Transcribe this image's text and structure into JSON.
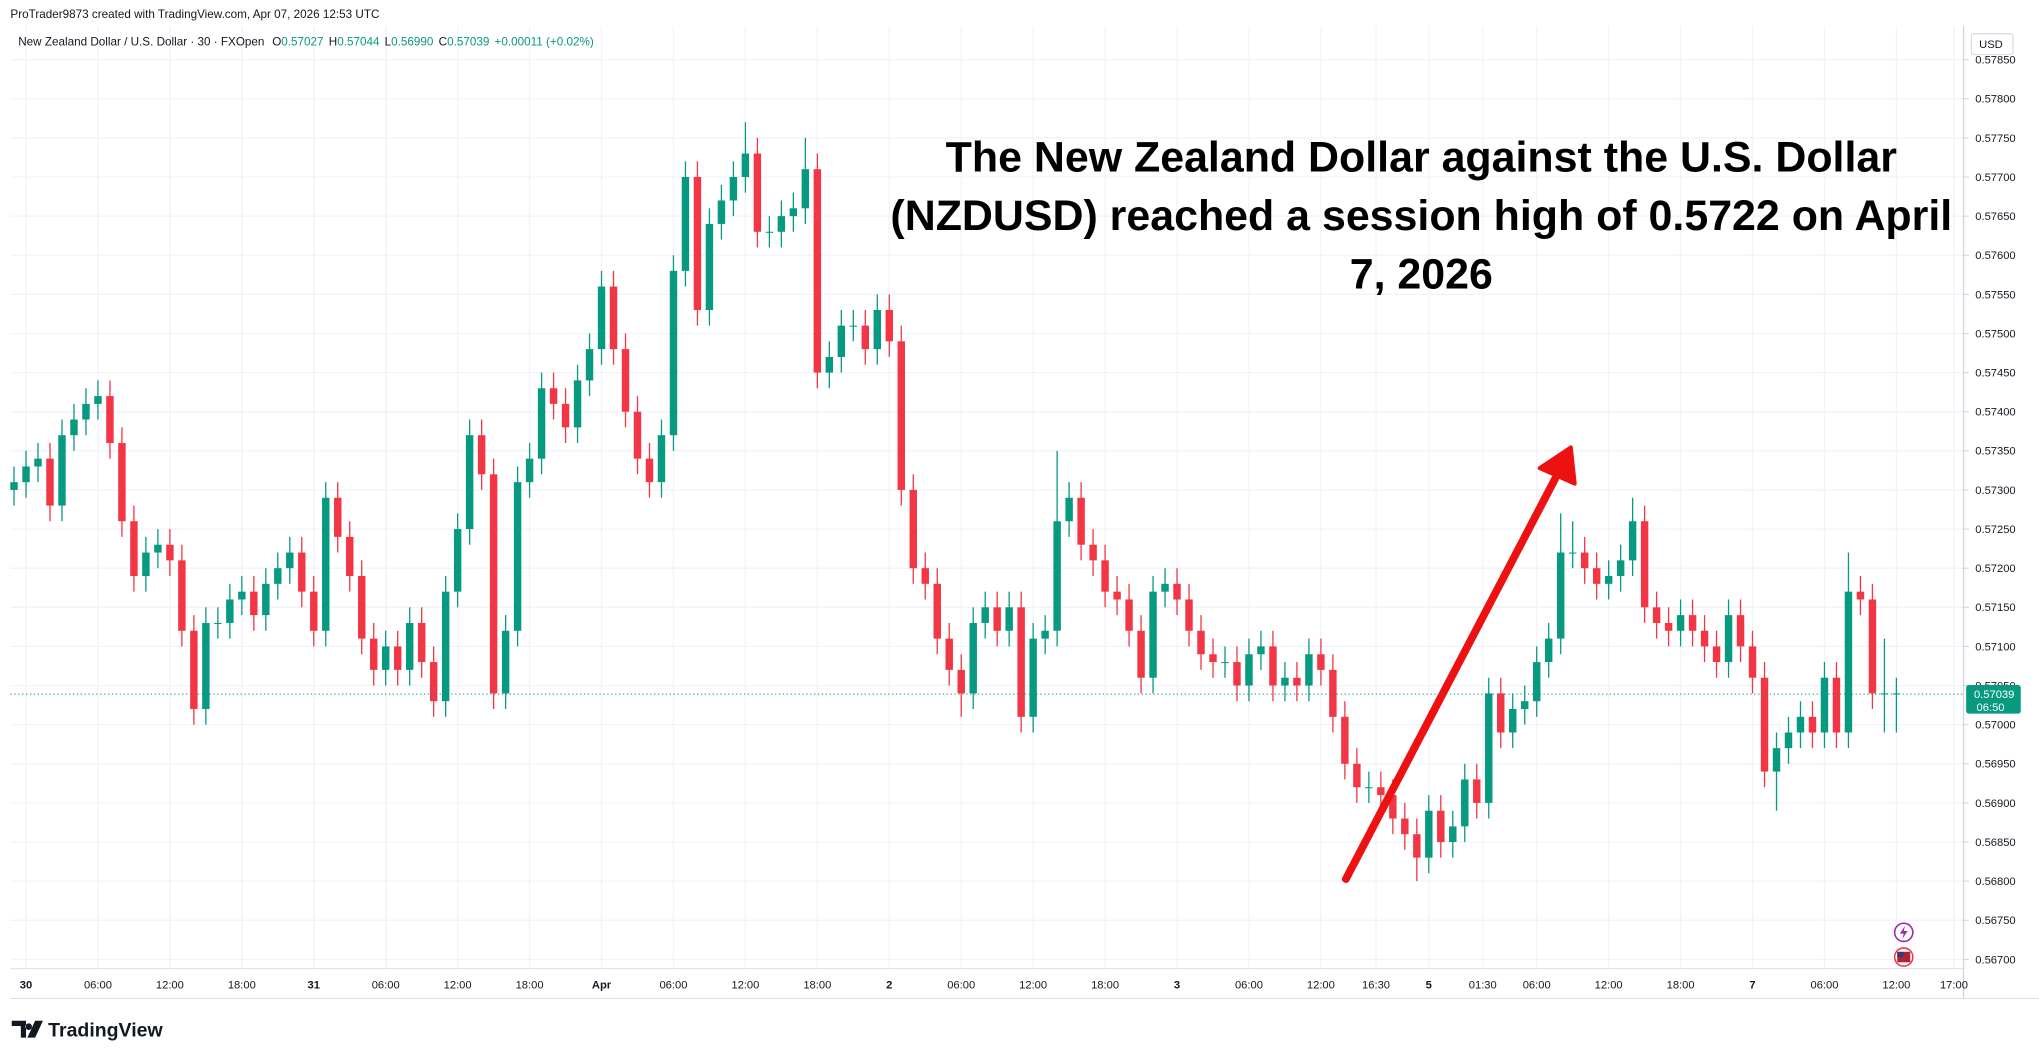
{
  "header": {
    "credit": "ProTrader9873 created with TradingView.com, Apr 07, 2026 12:53 UTC",
    "logo": "TradingView"
  },
  "chart_data": {
    "type": "candlestick",
    "title": "New Zealand Dollar / U.S. Dollar · 30 · FXOpen",
    "ohlc_legend": [
      {
        "label": "O",
        "value": "0.57027"
      },
      {
        "label": "H",
        "value": "0.57044"
      },
      {
        "label": "L",
        "value": "0.56990"
      },
      {
        "label": "C",
        "value": "0.57039"
      }
    ],
    "change": "+0.00011 (+0.02%)",
    "currency": "USD",
    "annotation": [
      "The New Zealand Dollar against the U.S. Dollar",
      "(NZDUSD) reached a session high of 0.5722 on April",
      "7, 2026"
    ],
    "up_color": "#089981",
    "down_color": "#f23645",
    "x": [
      -1,
      0,
      1,
      2,
      3,
      4,
      5,
      6,
      7,
      8,
      9,
      10,
      11,
      12,
      13,
      14,
      15,
      16,
      17,
      18,
      19,
      20,
      21,
      22,
      23,
      24,
      25,
      26,
      27,
      28,
      29,
      30,
      31,
      32,
      33,
      34,
      35,
      36,
      37,
      38,
      39,
      40,
      41,
      42,
      43,
      44,
      45,
      46,
      47,
      48,
      49,
      50,
      51,
      52,
      53,
      54,
      55,
      56,
      57,
      58,
      59,
      60,
      61,
      62,
      63,
      64,
      65,
      66,
      67,
      68,
      69,
      70,
      71,
      72,
      73,
      74,
      75,
      76,
      77,
      78,
      79,
      80,
      81,
      82,
      83,
      84,
      85,
      86,
      87,
      88,
      89,
      90,
      91,
      92,
      93,
      94,
      95,
      96,
      97,
      98,
      99,
      100,
      101,
      102,
      103,
      104,
      105,
      106,
      107,
      108,
      109,
      110,
      111,
      112,
      113,
      114,
      115,
      116,
      117,
      118,
      119,
      120,
      121,
      122,
      123,
      124,
      125,
      126,
      127,
      128,
      129,
      130,
      131,
      132,
      133,
      134,
      135,
      136,
      137,
      138,
      139,
      140,
      141,
      142,
      143,
      144,
      145,
      146,
      147,
      148,
      149,
      150,
      151,
      152,
      153,
      154,
      155,
      156
    ],
    "open": [
      0.573,
      0.5731,
      0.5733,
      0.5734,
      0.5728,
      0.5737,
      0.5739,
      0.5741,
      0.5742,
      0.5736,
      0.5726,
      0.5719,
      0.5722,
      0.5723,
      0.5721,
      0.5712,
      0.5702,
      0.5713,
      0.5713,
      0.5716,
      0.5717,
      0.5714,
      0.5718,
      0.572,
      0.5722,
      0.5717,
      0.5712,
      0.5729,
      0.5724,
      0.5719,
      0.5711,
      0.5707,
      0.571,
      0.5707,
      0.5713,
      0.5708,
      0.5703,
      0.5717,
      0.5725,
      0.5737,
      0.5732,
      0.5704,
      0.5712,
      0.5731,
      0.5734,
      0.5743,
      0.5741,
      0.5738,
      0.5744,
      0.5748,
      0.5756,
      0.5748,
      0.574,
      0.5734,
      0.5731,
      0.5737,
      0.5758,
      0.577,
      0.5753,
      0.5764,
      0.5767,
      0.577,
      0.5773,
      0.5763,
      0.5763,
      0.5765,
      0.5766,
      0.5771,
      0.5745,
      0.5747,
      0.5751,
      0.5751,
      0.5748,
      0.5753,
      0.5749,
      0.573,
      0.572,
      0.5718,
      0.5711,
      0.5707,
      0.5704,
      0.5713,
      0.5715,
      0.5712,
      0.5715,
      0.5701,
      0.5711,
      0.5712,
      0.5726,
      0.5729,
      0.5723,
      0.5721,
      0.5717,
      0.5716,
      0.5712,
      0.5706,
      0.5717,
      0.5718,
      0.5716,
      0.5712,
      0.5709,
      0.5708,
      0.5708,
      0.5705,
      0.5709,
      0.571,
      0.5705,
      0.5706,
      0.5705,
      0.5709,
      0.5707,
      0.5701,
      0.5695,
      0.5692,
      0.5692,
      0.5691,
      0.5688,
      0.5686,
      0.5683,
      0.5689,
      0.5685,
      0.5687,
      0.5693,
      0.569,
      0.5704,
      0.5699,
      0.5702,
      0.5703,
      0.5708,
      0.5711,
      0.5722,
      0.5722,
      0.572,
      0.5718,
      0.5719,
      0.5721,
      0.5726,
      0.5715,
      0.5713,
      0.5712,
      0.5714,
      0.5712,
      0.571,
      0.5708,
      0.5714,
      0.571,
      0.5706,
      0.5694,
      0.5697,
      0.5699,
      0.5701,
      0.5699,
      0.5706,
      0.5699,
      0.5717,
      0.5716,
      0.5704,
      0.5704
    ],
    "high": [
      0.5733,
      0.5735,
      0.5736,
      0.5736,
      0.5739,
      0.5741,
      0.5743,
      0.5744,
      0.5744,
      0.5738,
      0.5728,
      0.5724,
      0.5725,
      0.5725,
      0.5723,
      0.5714,
      0.5715,
      0.5715,
      0.5718,
      0.5719,
      0.5719,
      0.572,
      0.5722,
      0.5724,
      0.5724,
      0.5719,
      0.5731,
      0.5731,
      0.5726,
      0.5721,
      0.5713,
      0.5712,
      0.5712,
      0.5715,
      0.5715,
      0.571,
      0.5719,
      0.5727,
      0.5739,
      0.5739,
      0.5734,
      0.5714,
      0.5733,
      0.5736,
      0.5745,
      0.5745,
      0.5743,
      0.5746,
      0.575,
      0.5758,
      0.5758,
      0.575,
      0.5742,
      0.5736,
      0.5739,
      0.576,
      0.5772,
      0.5772,
      0.5766,
      0.5769,
      0.5772,
      0.5777,
      0.5775,
      0.5765,
      0.5767,
      0.5768,
      0.5775,
      0.5773,
      0.5749,
      0.5753,
      0.5753,
      0.5753,
      0.5755,
      0.5755,
      0.5751,
      0.5732,
      0.5722,
      0.572,
      0.5713,
      0.5709,
      0.5715,
      0.5717,
      0.5717,
      0.5717,
      0.5717,
      0.5713,
      0.5714,
      0.5735,
      0.5731,
      0.5731,
      0.5725,
      0.5723,
      0.5719,
      0.5718,
      0.5714,
      0.5719,
      0.572,
      0.572,
      0.5718,
      0.5714,
      0.5711,
      0.571,
      0.571,
      0.5711,
      0.5712,
      0.5712,
      0.5708,
      0.5708,
      0.5711,
      0.5711,
      0.5709,
      0.5703,
      0.5697,
      0.5694,
      0.5694,
      0.5693,
      0.569,
      0.5688,
      0.5691,
      0.5691,
      0.5689,
      0.5695,
      0.5695,
      0.5706,
      0.5706,
      0.5704,
      0.5705,
      0.571,
      0.5713,
      0.5727,
      0.5726,
      0.5724,
      0.5722,
      0.5721,
      0.5723,
      0.5729,
      0.5728,
      0.5717,
      0.5715,
      0.5716,
      0.5716,
      0.5714,
      0.5712,
      0.5716,
      0.5716,
      0.5712,
      0.5708,
      0.5699,
      0.5701,
      0.5703,
      0.5703,
      0.5708,
      0.5708,
      0.5722,
      0.5719,
      0.5718,
      0.5711,
      0.5706
    ],
    "low": [
      0.5728,
      0.5729,
      0.5731,
      0.5726,
      0.5726,
      0.5735,
      0.5737,
      0.5739,
      0.5734,
      0.5724,
      0.5717,
      0.5717,
      0.572,
      0.5719,
      0.571,
      0.57,
      0.57,
      0.5711,
      0.5711,
      0.5714,
      0.5712,
      0.5712,
      0.5716,
      0.5718,
      0.5715,
      0.571,
      0.571,
      0.5722,
      0.5717,
      0.5709,
      0.5705,
      0.5705,
      0.5705,
      0.5705,
      0.5706,
      0.5701,
      0.5701,
      0.5715,
      0.5723,
      0.573,
      0.5702,
      0.5702,
      0.571,
      0.5729,
      0.5732,
      0.5739,
      0.5736,
      0.5736,
      0.5742,
      0.5746,
      0.5746,
      0.5738,
      0.5732,
      0.5729,
      0.5729,
      0.5735,
      0.5756,
      0.5751,
      0.5751,
      0.5762,
      0.5765,
      0.5768,
      0.5761,
      0.5761,
      0.5761,
      0.5763,
      0.5764,
      0.5743,
      0.5743,
      0.5745,
      0.5749,
      0.5746,
      0.5746,
      0.5747,
      0.5728,
      0.5718,
      0.5716,
      0.5709,
      0.5705,
      0.5701,
      0.5702,
      0.5711,
      0.571,
      0.571,
      0.5699,
      0.5699,
      0.5709,
      0.571,
      0.5724,
      0.5721,
      0.5719,
      0.5715,
      0.5714,
      0.571,
      0.5704,
      0.5704,
      0.5715,
      0.5714,
      0.571,
      0.5707,
      0.5706,
      0.5706,
      0.5703,
      0.5703,
      0.5707,
      0.5703,
      0.5703,
      0.5703,
      0.5703,
      0.5705,
      0.5699,
      0.5693,
      0.569,
      0.569,
      0.5689,
      0.5686,
      0.5684,
      0.568,
      0.5681,
      0.5683,
      0.5683,
      0.5685,
      0.5688,
      0.5688,
      0.5697,
      0.5697,
      0.57,
      0.5701,
      0.5706,
      0.5709,
      0.572,
      0.5718,
      0.5716,
      0.5716,
      0.5717,
      0.5719,
      0.5713,
      0.5711,
      0.571,
      0.571,
      0.571,
      0.5708,
      0.5706,
      0.5706,
      0.5708,
      0.5704,
      0.5692,
      0.5689,
      0.5695,
      0.5697,
      0.5697,
      0.5697,
      0.5697,
      0.5697,
      0.5714,
      0.5702,
      0.5699,
      0.5699
    ],
    "close": [
      0.5731,
      0.5733,
      0.5734,
      0.5728,
      0.5737,
      0.5739,
      0.5741,
      0.5742,
      0.5736,
      0.5726,
      0.5719,
      0.5722,
      0.5723,
      0.5721,
      0.5712,
      0.5702,
      0.5713,
      0.5713,
      0.5716,
      0.5717,
      0.5714,
      0.5718,
      0.572,
      0.5722,
      0.5717,
      0.5712,
      0.5729,
      0.5724,
      0.5719,
      0.5711,
      0.5707,
      0.571,
      0.5707,
      0.5713,
      0.5708,
      0.5703,
      0.5717,
      0.5725,
      0.5737,
      0.5732,
      0.5704,
      0.5712,
      0.5731,
      0.5734,
      0.5743,
      0.5741,
      0.5738,
      0.5744,
      0.5748,
      0.5756,
      0.5748,
      0.574,
      0.5734,
      0.5731,
      0.5737,
      0.5758,
      0.577,
      0.5753,
      0.5764,
      0.5767,
      0.577,
      0.5773,
      0.5763,
      0.5763,
      0.5765,
      0.5766,
      0.5771,
      0.5745,
      0.5747,
      0.5751,
      0.5751,
      0.5748,
      0.5753,
      0.5749,
      0.573,
      0.572,
      0.5718,
      0.5711,
      0.5707,
      0.5704,
      0.5713,
      0.5715,
      0.5712,
      0.5715,
      0.5701,
      0.5711,
      0.5712,
      0.5726,
      0.5729,
      0.5723,
      0.5721,
      0.5717,
      0.5716,
      0.5712,
      0.5706,
      0.5717,
      0.5718,
      0.5716,
      0.5712,
      0.5709,
      0.5708,
      0.5708,
      0.5705,
      0.5709,
      0.571,
      0.5705,
      0.5706,
      0.5705,
      0.5709,
      0.5707,
      0.5701,
      0.5695,
      0.5692,
      0.5692,
      0.5691,
      0.5688,
      0.5686,
      0.5683,
      0.5689,
      0.5685,
      0.5687,
      0.5693,
      0.569,
      0.5704,
      0.5699,
      0.5702,
      0.5703,
      0.5708,
      0.5711,
      0.5722,
      0.5722,
      0.572,
      0.5718,
      0.5719,
      0.5721,
      0.5726,
      0.5715,
      0.5713,
      0.5712,
      0.5714,
      0.5712,
      0.571,
      0.5708,
      0.5714,
      0.571,
      0.5706,
      0.5694,
      0.5697,
      0.5699,
      0.5701,
      0.5699,
      0.5706,
      0.5699,
      0.5717,
      0.5716,
      0.5704,
      0.5704,
      0.5704
    ],
    "xlim": [
      -1.3,
      161.6
    ],
    "xticks": [
      {
        "value": 0,
        "label": "30"
      },
      {
        "value": 6,
        "label": "06:00"
      },
      {
        "value": 12,
        "label": "12:00"
      },
      {
        "value": 18,
        "label": "18:00"
      },
      {
        "value": 24,
        "label": "31"
      },
      {
        "value": 30,
        "label": "06:00"
      },
      {
        "value": 36,
        "label": "12:00"
      },
      {
        "value": 42,
        "label": "18:00"
      },
      {
        "value": 48,
        "label": "Apr"
      },
      {
        "value": 54,
        "label": "06:00"
      },
      {
        "value": 60,
        "label": "12:00"
      },
      {
        "value": 66,
        "label": "18:00"
      },
      {
        "value": 72,
        "label": "2"
      },
      {
        "value": 78,
        "label": "06:00"
      },
      {
        "value": 84,
        "label": "12:00"
      },
      {
        "value": 90,
        "label": "18:00"
      },
      {
        "value": 96,
        "label": "3"
      },
      {
        "value": 102,
        "label": "06:00"
      },
      {
        "value": 108,
        "label": "12:00"
      },
      {
        "value": 112.6,
        "label": "16:30"
      },
      {
        "value": 117,
        "label": "5"
      },
      {
        "value": 121.5,
        "label": "01:30"
      },
      {
        "value": 126,
        "label": "06:00"
      },
      {
        "value": 132,
        "label": "12:00"
      },
      {
        "value": 138,
        "label": "18:00"
      },
      {
        "value": 144,
        "label": "7"
      },
      {
        "value": 150,
        "label": "06:00"
      },
      {
        "value": 156,
        "label": "12:00"
      },
      {
        "value": 160.8,
        "label": "17:00"
      }
    ],
    "ylim": [
      0.56688,
      0.57893
    ],
    "yticks": [
      {
        "value": 0.567,
        "label": "0.56700"
      },
      {
        "value": 0.5675,
        "label": "0.56750"
      },
      {
        "value": 0.568,
        "label": "0.56800"
      },
      {
        "value": 0.5685,
        "label": "0.56850"
      },
      {
        "value": 0.569,
        "label": "0.56900"
      },
      {
        "value": 0.5695,
        "label": "0.56950"
      },
      {
        "value": 0.57,
        "label": "0.57000"
      },
      {
        "value": 0.5705,
        "label": "0.57050"
      },
      {
        "value": 0.571,
        "label": "0.57100"
      },
      {
        "value": 0.5715,
        "label": "0.57150"
      },
      {
        "value": 0.572,
        "label": "0.57200"
      },
      {
        "value": 0.5725,
        "label": "0.57250"
      },
      {
        "value": 0.573,
        "label": "0.57300"
      },
      {
        "value": 0.5735,
        "label": "0.57350"
      },
      {
        "value": 0.574,
        "label": "0.57400"
      },
      {
        "value": 0.5745,
        "label": "0.57450"
      },
      {
        "value": 0.575,
        "label": "0.57500"
      },
      {
        "value": 0.5755,
        "label": "0.57550"
      },
      {
        "value": 0.576,
        "label": "0.57600"
      },
      {
        "value": 0.5765,
        "label": "0.57650"
      },
      {
        "value": 0.577,
        "label": "0.57700"
      },
      {
        "value": 0.5775,
        "label": "0.57750"
      },
      {
        "value": 0.578,
        "label": "0.57800"
      },
      {
        "value": 0.5785,
        "label": "0.57850"
      }
    ],
    "price_line": {
      "value": 0.57039,
      "label": "0.57039",
      "countdown": "06:50"
    },
    "grid": true
  }
}
